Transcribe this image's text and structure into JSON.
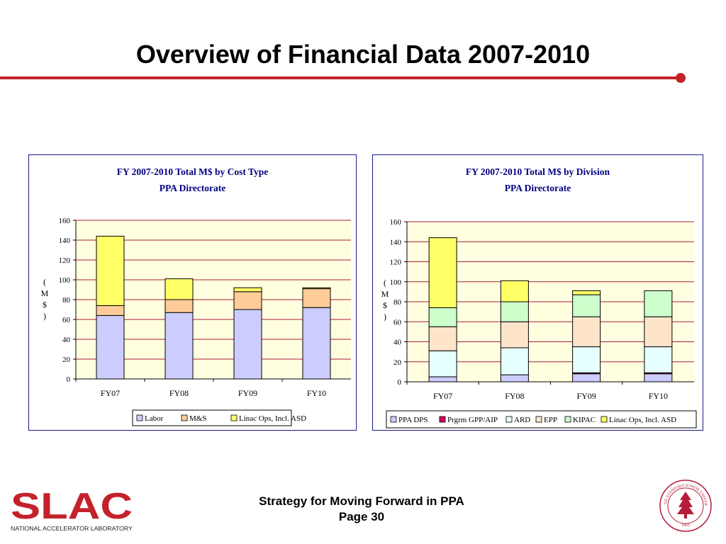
{
  "slide": {
    "title": "Overview of Financial Data 2007-2010",
    "footer_line1": "Strategy for Moving Forward in PPA",
    "footer_line2": "Page 30",
    "logo_text": "SLAC",
    "logo_subtext": "NATIONAL ACCELERATOR LABORATORY",
    "seal_text": "LELAND STANFORD JUNIOR UNIVERSITY",
    "seal_year": "1891"
  },
  "colors": {
    "accent_red": "#c5212b",
    "frame_blue": "#1a1a8c",
    "title_blue": "#000080",
    "plot_bg": "#ffffe0",
    "grid": "#aa1e3c"
  },
  "chart_data": [
    {
      "type": "bar",
      "stacked": true,
      "title": "FY 2007-2010 Total M$ by Cost Type",
      "subtitle": "PPA Directorate",
      "ylabel": "(M$)",
      "ylim": [
        0,
        160
      ],
      "yticks": [
        0,
        20,
        40,
        60,
        80,
        100,
        120,
        140,
        160
      ],
      "grid": true,
      "legend_position": "bottom",
      "categories": [
        "FY07",
        "FY08",
        "FY09",
        "FY10"
      ],
      "series": [
        {
          "name": "Labor",
          "color": "#ccccff",
          "values": [
            64,
            67,
            70,
            72
          ]
        },
        {
          "name": "M&S",
          "color": "#ffcc99",
          "values": [
            10,
            13,
            18,
            19
          ]
        },
        {
          "name": "Linac Ops, Incl. ASD",
          "color": "#ffff66",
          "values": [
            70,
            21,
            4,
            1
          ]
        }
      ]
    },
    {
      "type": "bar",
      "stacked": true,
      "title": "FY 2007-2010 Total M$ by Division",
      "subtitle": "PPA Directorate",
      "ylabel": "(M$)",
      "ylim": [
        0,
        160
      ],
      "yticks": [
        0,
        20,
        40,
        60,
        80,
        100,
        120,
        140,
        160
      ],
      "grid": true,
      "legend_position": "bottom",
      "categories": [
        "FY07",
        "FY08",
        "FY09",
        "FY10"
      ],
      "series": [
        {
          "name": "PPA DPS",
          "color": "#ccccff",
          "values": [
            5,
            7,
            8,
            8
          ]
        },
        {
          "name": "Prgrm GPP/AIP",
          "color": "#cc0066",
          "values": [
            0,
            0,
            1,
            1
          ]
        },
        {
          "name": "ARD",
          "color": "#e6ffff",
          "values": [
            26,
            27,
            26,
            26
          ]
        },
        {
          "name": "EPP",
          "color": "#ffe4cc",
          "values": [
            24,
            26,
            30,
            30
          ]
        },
        {
          "name": "KIPAC",
          "color": "#ccffcc",
          "values": [
            19,
            20,
            22,
            26
          ]
        },
        {
          "name": "Linac Ops, Incl. ASD",
          "color": "#ffff66",
          "values": [
            70,
            21,
            4,
            0
          ]
        }
      ]
    }
  ]
}
